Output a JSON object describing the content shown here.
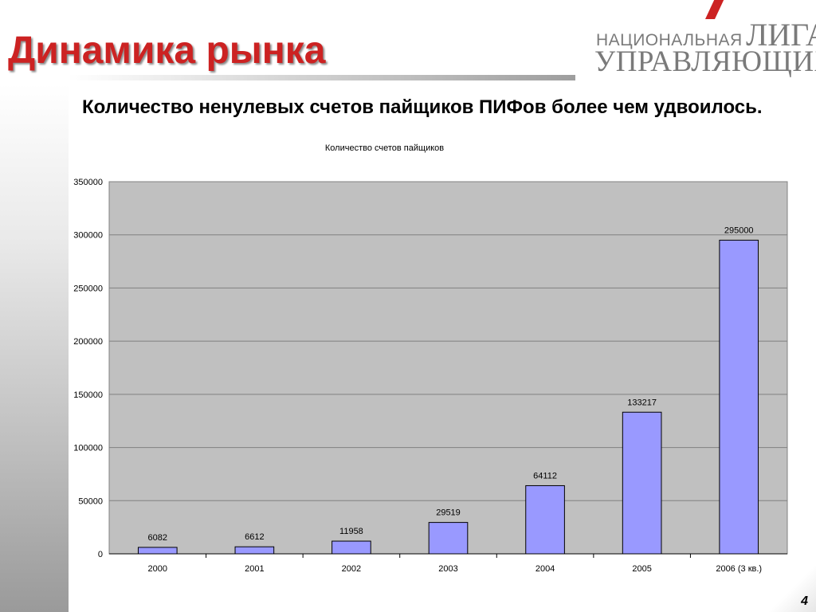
{
  "slide": {
    "title": "Динамика рынка",
    "subtitle": "Количество ненулевых счетов пайщиков ПИФов более чем удвоилось.",
    "page_number": "4"
  },
  "logo": {
    "line1_small": "НАЦИОНАЛЬНАЯ",
    "line1_big": "ЛИГА",
    "line2": "УПРАВЛЯЮЩИХ",
    "accent_color": "#cc2222"
  },
  "colors": {
    "title": "#cc2222",
    "bar_fill": "#9999ff",
    "plot_background": "#c0c0c0"
  },
  "chart_data": {
    "type": "bar",
    "title": "Количество счетов пайщиков",
    "categories": [
      "2000",
      "2001",
      "2002",
      "2003",
      "2004",
      "2005",
      "2006 (3 кв.)"
    ],
    "values": [
      6082,
      6612,
      11958,
      29519,
      64112,
      133217,
      295000
    ],
    "data_labels": [
      "6082",
      "6612",
      "11958",
      "29519",
      "64112",
      "133217",
      "295000"
    ],
    "xlabel": "",
    "ylabel": "",
    "ylim": [
      0,
      350000
    ],
    "yticks": [
      0,
      50000,
      100000,
      150000,
      200000,
      250000,
      300000,
      350000
    ],
    "grid": true,
    "legend": "none"
  }
}
